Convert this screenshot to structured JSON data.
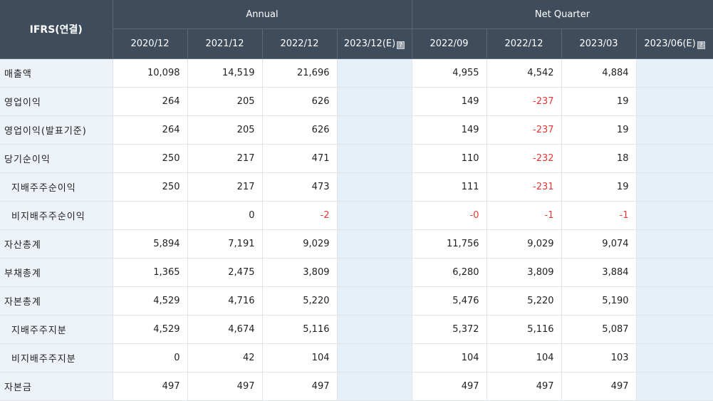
{
  "header": {
    "corner_label": "IFRS(연결)",
    "annual_label": "Annual",
    "quarter_label": "Net Quarter",
    "annual_periods": [
      "2020/12",
      "2021/12",
      "2022/12",
      "2023/12(E)"
    ],
    "quarter_periods": [
      "2022/09",
      "2022/12",
      "2023/03",
      "2023/06(E)"
    ],
    "estimate_icon": "info-icon"
  },
  "rows": [
    {
      "label": "매출액",
      "sub": false,
      "annual": [
        "10,098",
        "14,519",
        "21,696",
        ""
      ],
      "quarter": [
        "4,955",
        "4,542",
        "4,884",
        ""
      ]
    },
    {
      "label": "영업이익",
      "sub": false,
      "annual": [
        "264",
        "205",
        "626",
        ""
      ],
      "quarter": [
        "149",
        "-237",
        "19",
        ""
      ]
    },
    {
      "label": "영업이익(발표기준)",
      "sub": false,
      "annual": [
        "264",
        "205",
        "626",
        ""
      ],
      "quarter": [
        "149",
        "-237",
        "19",
        ""
      ]
    },
    {
      "label": "당기순이익",
      "sub": false,
      "annual": [
        "250",
        "217",
        "471",
        ""
      ],
      "quarter": [
        "110",
        "-232",
        "18",
        ""
      ]
    },
    {
      "label": "지배주주순이익",
      "sub": true,
      "annual": [
        "250",
        "217",
        "473",
        ""
      ],
      "quarter": [
        "111",
        "-231",
        "19",
        ""
      ]
    },
    {
      "label": "비지배주주순이익",
      "sub": true,
      "annual": [
        "",
        "0",
        "-2",
        ""
      ],
      "quarter": [
        "-0",
        "-1",
        "-1",
        ""
      ]
    },
    {
      "label": "자산총계",
      "sub": false,
      "annual": [
        "5,894",
        "7,191",
        "9,029",
        ""
      ],
      "quarter": [
        "11,756",
        "9,029",
        "9,074",
        ""
      ]
    },
    {
      "label": "부채총계",
      "sub": false,
      "annual": [
        "1,365",
        "2,475",
        "3,809",
        ""
      ],
      "quarter": [
        "6,280",
        "3,809",
        "3,884",
        ""
      ]
    },
    {
      "label": "자본총계",
      "sub": false,
      "annual": [
        "4,529",
        "4,716",
        "5,220",
        ""
      ],
      "quarter": [
        "5,476",
        "5,220",
        "5,190",
        ""
      ]
    },
    {
      "label": "지배주주지분",
      "sub": true,
      "annual": [
        "4,529",
        "4,674",
        "5,116",
        ""
      ],
      "quarter": [
        "5,372",
        "5,116",
        "5,087",
        ""
      ]
    },
    {
      "label": "비지배주주지분",
      "sub": true,
      "annual": [
        "0",
        "42",
        "104",
        ""
      ],
      "quarter": [
        "104",
        "104",
        "103",
        ""
      ]
    },
    {
      "label": "자본금",
      "sub": false,
      "annual": [
        "497",
        "497",
        "497",
        ""
      ],
      "quarter": [
        "497",
        "497",
        "497",
        ""
      ]
    }
  ],
  "colors": {
    "header_bg": "#3f4c5c",
    "label_bg": "#edf2f8",
    "estimate_bg": "#e6f0f8",
    "negative": "#e53935"
  }
}
